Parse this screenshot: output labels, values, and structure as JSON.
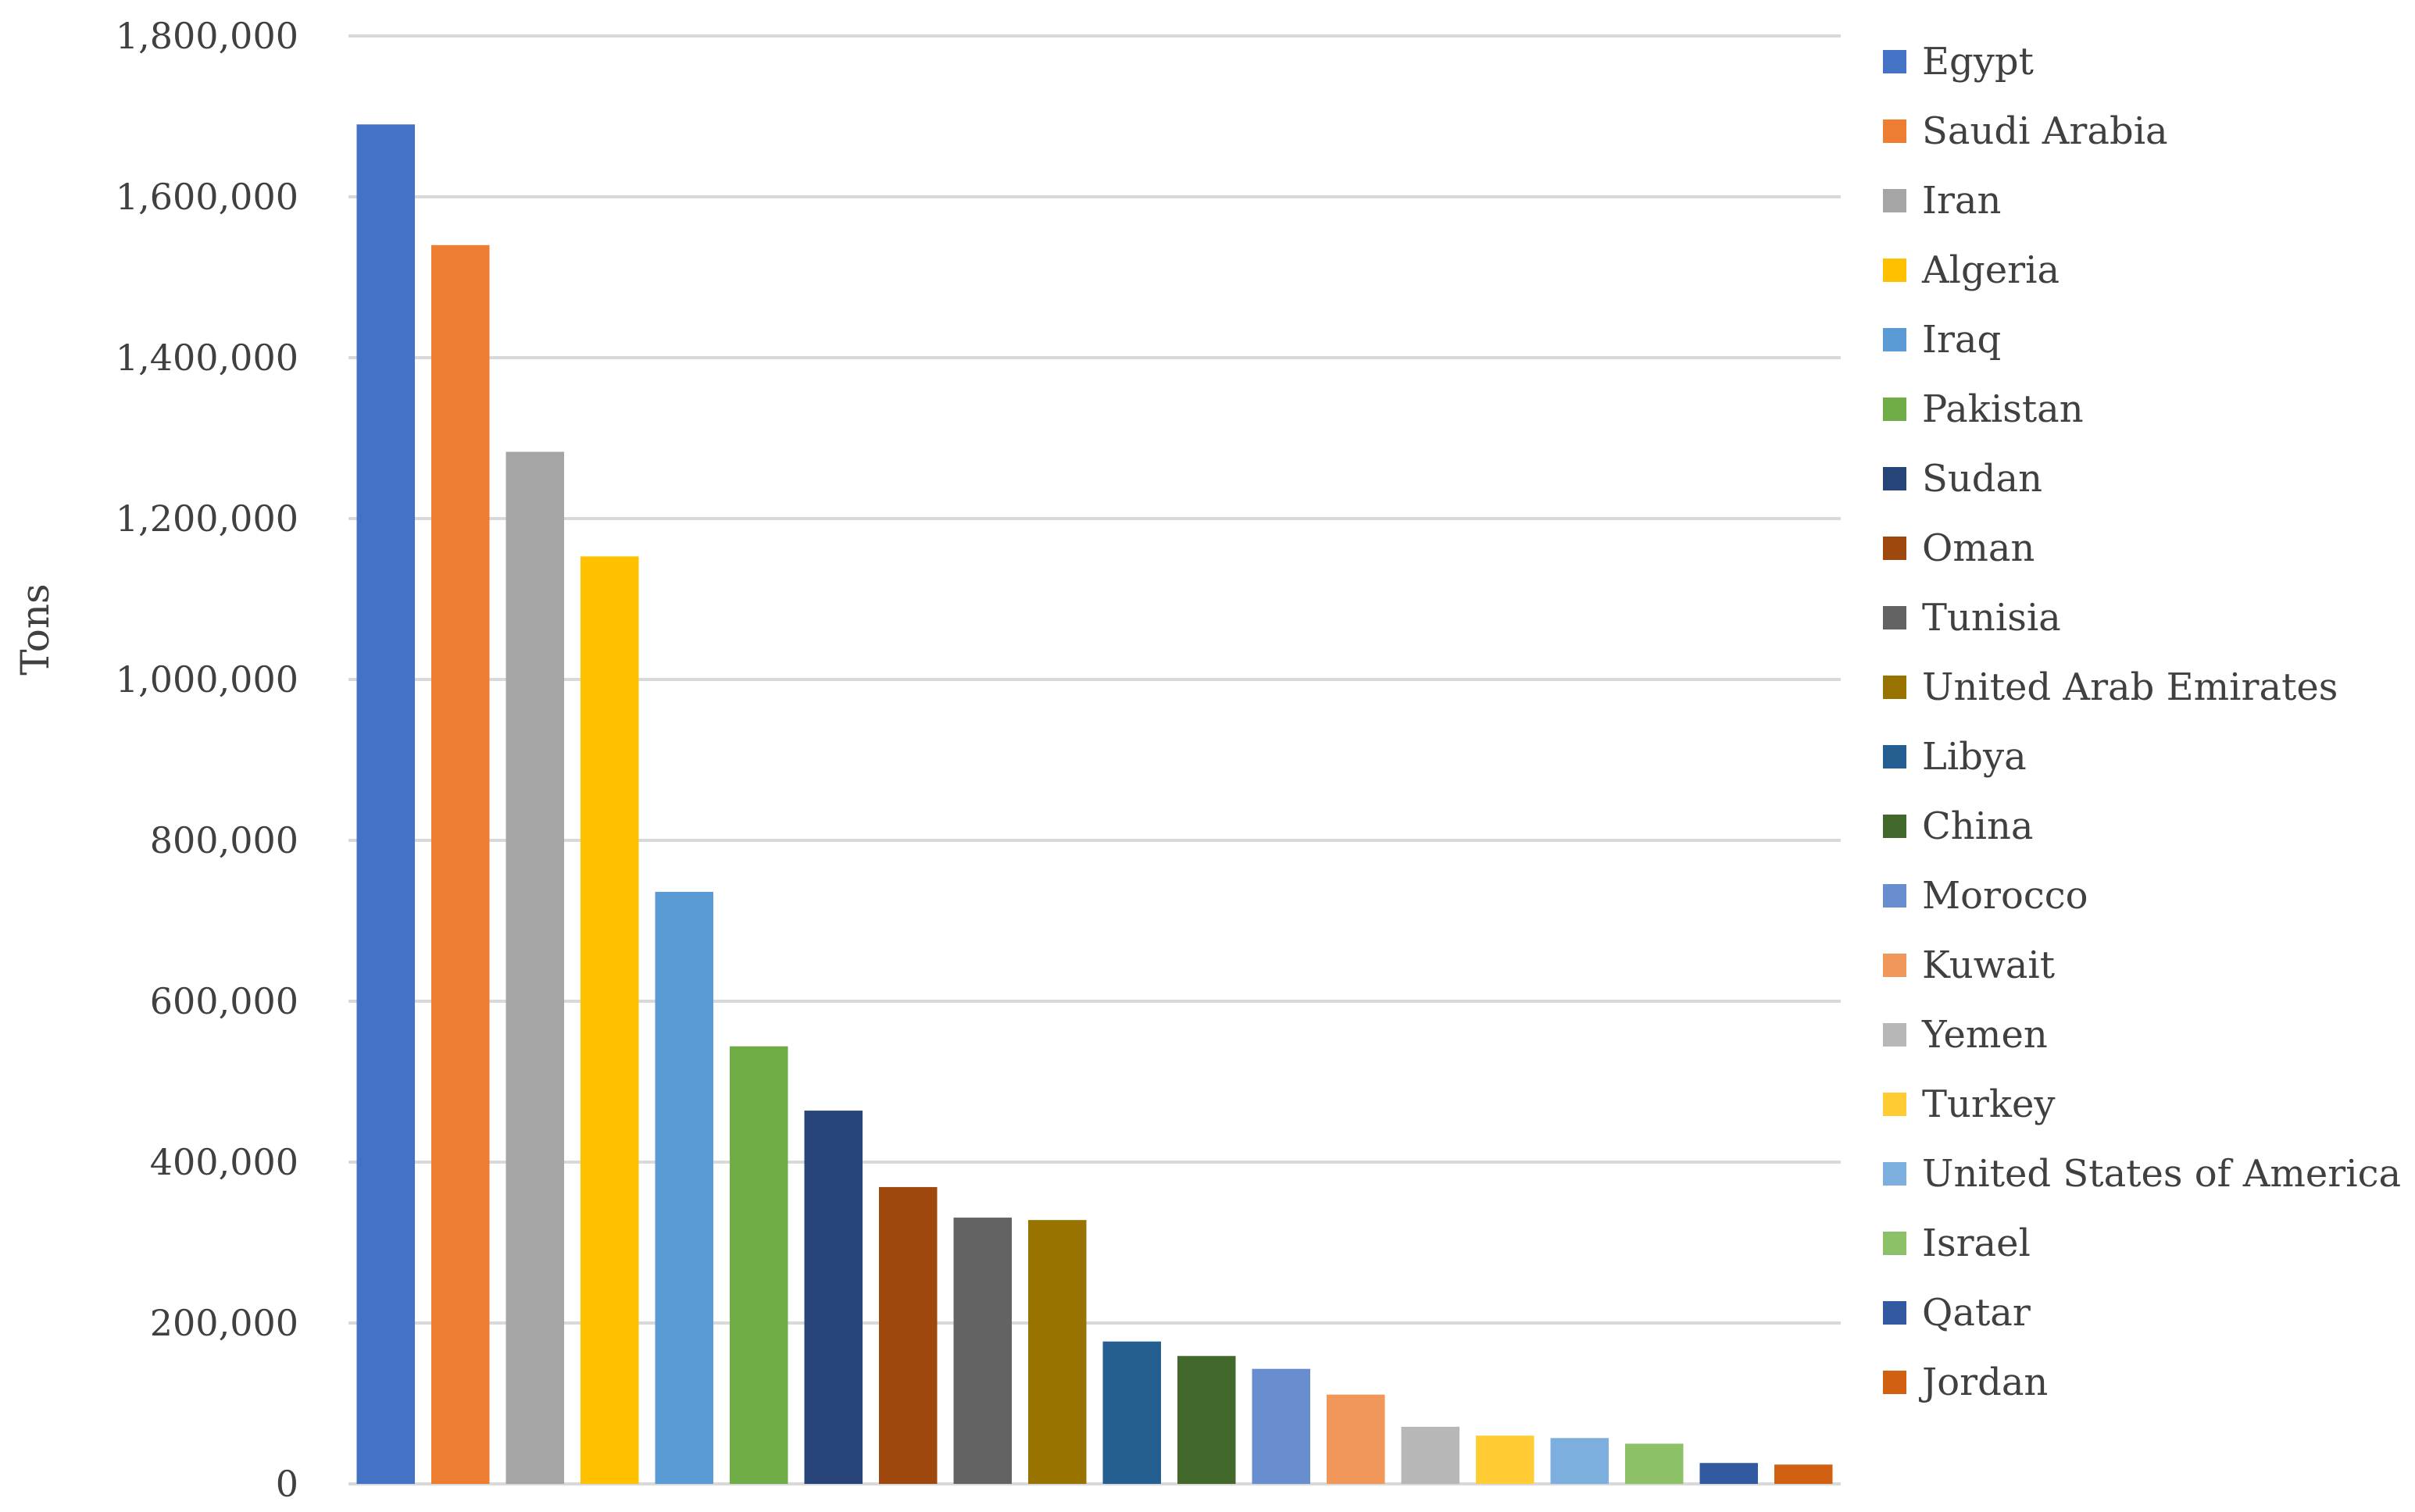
{
  "chart_data": {
    "type": "bar",
    "ylabel": "Tons",
    "ylim": [
      0,
      1800000
    ],
    "yticks": [
      {
        "value": 0,
        "label": "0"
      },
      {
        "value": 200000,
        "label": "200,000"
      },
      {
        "value": 400000,
        "label": "400,000"
      },
      {
        "value": 600000,
        "label": "600,000"
      },
      {
        "value": 800000,
        "label": "800,000"
      },
      {
        "value": 1000000,
        "label": "1,000,000"
      },
      {
        "value": 1200000,
        "label": "1,200,000"
      },
      {
        "value": 1400000,
        "label": "1,400,000"
      },
      {
        "value": 1600000,
        "label": "1,600,000"
      },
      {
        "value": 1800000,
        "label": "1,800,000"
      }
    ],
    "grid": true,
    "legend_position": "right",
    "series": [
      {
        "name": "Egypt",
        "value": 1690000,
        "color": "#4472C4"
      },
      {
        "name": "Saudi Arabia",
        "value": 1540000,
        "color": "#ED7D31"
      },
      {
        "name": "Iran",
        "value": 1283000,
        "color": "#A5A5A5"
      },
      {
        "name": "Algeria",
        "value": 1153000,
        "color": "#FFC000"
      },
      {
        "name": "Iraq",
        "value": 736000,
        "color": "#5B9BD5"
      },
      {
        "name": "Pakistan",
        "value": 544000,
        "color": "#70AD47"
      },
      {
        "name": "Sudan",
        "value": 464000,
        "color": "#264478"
      },
      {
        "name": "Oman",
        "value": 369000,
        "color": "#9E480E"
      },
      {
        "name": "Tunisia",
        "value": 331000,
        "color": "#636363"
      },
      {
        "name": "United Arab Emirates",
        "value": 328000,
        "color": "#997300"
      },
      {
        "name": "Libya",
        "value": 177000,
        "color": "#255E91"
      },
      {
        "name": "China",
        "value": 159000,
        "color": "#43682B"
      },
      {
        "name": "Morocco",
        "value": 143000,
        "color": "#698ED0"
      },
      {
        "name": "Kuwait",
        "value": 111000,
        "color": "#F1975A"
      },
      {
        "name": "Yemen",
        "value": 71000,
        "color": "#B7B7B7"
      },
      {
        "name": "Turkey",
        "value": 60000,
        "color": "#FFCD33"
      },
      {
        "name": "United States of America",
        "value": 57000,
        "color": "#7CAFDD"
      },
      {
        "name": "Israel",
        "value": 50000,
        "color": "#8CC168"
      },
      {
        "name": "Qatar",
        "value": 26000,
        "color": "#335AA1"
      },
      {
        "name": "Jordan",
        "value": 24000,
        "color": "#D26012"
      }
    ]
  }
}
